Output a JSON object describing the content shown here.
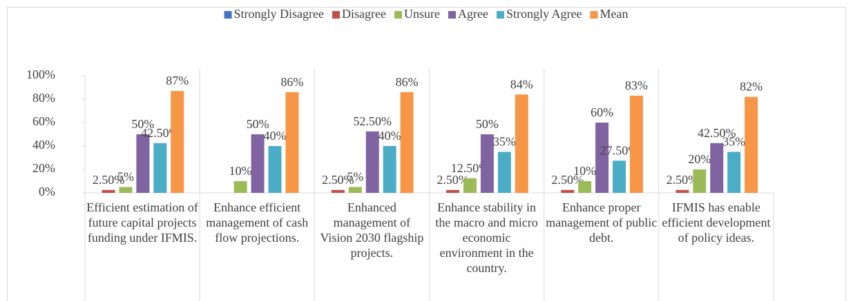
{
  "chart_data": {
    "type": "bar",
    "categories": [
      "Efficient estimation of future  capital projects funding under IFMIS.",
      "Enhance efficient management of cash flow projections.",
      "Enhanced management of Vision 2030 flagship projects.",
      "Enhance stability in the macro and micro economic environment in the country.",
      "Enhance proper management of public debt.",
      "IFMIS has enable efficient development of policy ideas."
    ],
    "series": [
      {
        "name": "Strongly Disagree",
        "color": "#4472c4",
        "values": [
          null,
          null,
          null,
          null,
          null,
          null
        ],
        "value_labels": [
          null,
          null,
          null,
          null,
          null,
          null
        ]
      },
      {
        "name": "Disagree",
        "color": "#c0504d",
        "values": [
          2.5,
          null,
          2.5,
          2.5,
          2.5,
          2.5
        ],
        "value_labels": [
          "2.50%",
          null,
          "2.50%",
          "2.50%",
          "2.50%",
          "2.50%"
        ]
      },
      {
        "name": "Unsure",
        "color": "#9bbb59",
        "values": [
          5,
          10,
          5,
          12.5,
          10,
          20
        ],
        "value_labels": [
          "5%",
          "10%",
          "5%",
          "12.50%",
          "10%",
          "20%"
        ]
      },
      {
        "name": "Agree",
        "color": "#8064a2",
        "values": [
          50,
          50,
          52.5,
          50,
          60,
          42.5
        ],
        "value_labels": [
          "50%",
          "50%",
          "52.50%",
          "50%",
          "60%",
          "42.50%"
        ]
      },
      {
        "name": "Strongly Agree",
        "color": "#4bacc6",
        "values": [
          42.5,
          40,
          40,
          35,
          27.5,
          35
        ],
        "value_labels": [
          "42.50%",
          "40%",
          "40%",
          "35%",
          "27.50%",
          "35%"
        ]
      },
      {
        "name": "Mean",
        "color": "#f79646",
        "values": [
          87,
          86,
          86,
          84,
          83,
          82
        ],
        "value_labels": [
          "87%",
          "86%",
          "86%",
          "84%",
          "83%",
          "82%"
        ]
      }
    ],
    "ylim": [
      0,
      100
    ],
    "yticks": [
      {
        "value": 0,
        "label": "0%"
      },
      {
        "value": 20,
        "label": "20%"
      },
      {
        "value": 40,
        "label": "40%"
      },
      {
        "value": 60,
        "label": "60%"
      },
      {
        "value": 80,
        "label": "80%"
      },
      {
        "value": 100,
        "label": "100%"
      }
    ],
    "grid": false,
    "legend": "top"
  }
}
